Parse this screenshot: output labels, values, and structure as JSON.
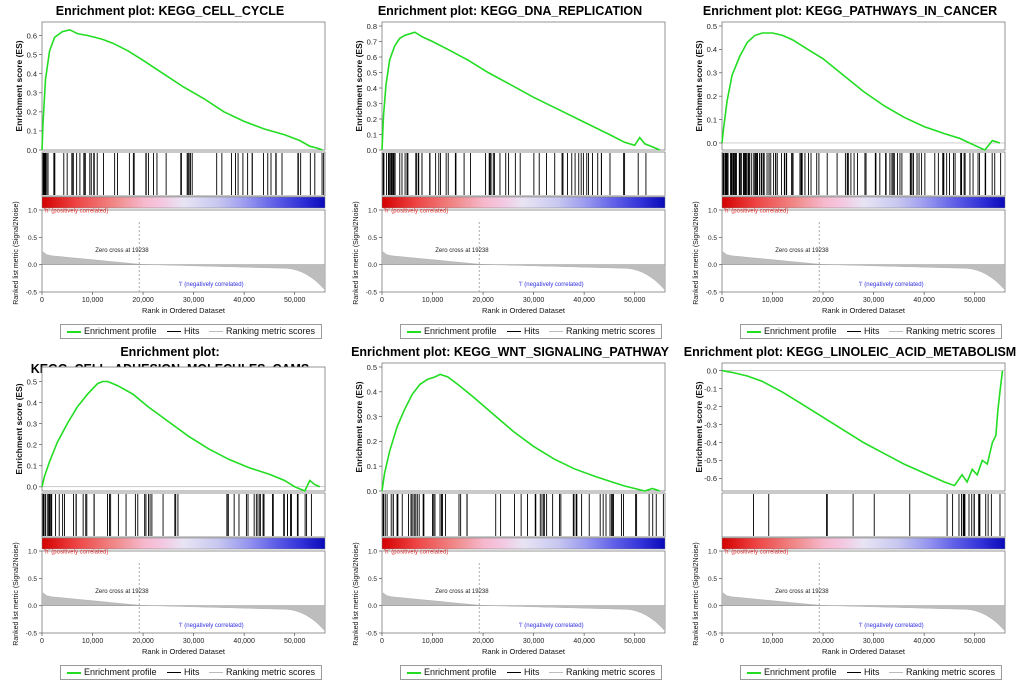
{
  "colors": {
    "es_line": "#22dd22",
    "hits": "#000000",
    "metric_fill": "#bdbdbd",
    "positive_label": "#e03030",
    "negative_label": "#3030e0",
    "zero_line": "#9a9a9a"
  },
  "legend": {
    "enrichment_profile": "Enrichment profile",
    "hits": "Hits",
    "ranking_metric_scores": "Ranking metric scores"
  },
  "common": {
    "es_ylabel": "Enrichment score (ES)",
    "metric_ylabel": "Ranked list metric (Signal2Noise)",
    "xlabel": "Rank in Ordered Dataset",
    "positive_label": "'h' (positively correlated)",
    "negative_label": "'l' (negatively correlated)",
    "zero_cross": "Zero cross at 19238",
    "metric_ticks": [
      "1.0",
      "0.5",
      "0.0",
      "-0.5"
    ],
    "x_ticks": [
      "0",
      "10,000",
      "20,000",
      "30,000",
      "40,000",
      "50,000"
    ]
  },
  "chart_data": [
    {
      "type": "line",
      "title": "Enrichment plot: KEGG_CELL_CYCLE",
      "title_lines": [
        "Enrichment plot: KEGG_CELL_CYCLE"
      ],
      "ylim": [
        0,
        0.65
      ],
      "yticks": [
        "0.0",
        "0.1",
        "0.2",
        "0.3",
        "0.4",
        "0.5",
        "0.6"
      ],
      "xlim": [
        0,
        56000
      ],
      "x": [
        0,
        200,
        700,
        1500,
        2500,
        4000,
        5500,
        7000,
        9000,
        10500,
        12000,
        14000,
        17000,
        20000,
        24000,
        28000,
        32000,
        36000,
        40000,
        44000,
        48000,
        51000,
        53000,
        54500,
        55500
      ],
      "y": [
        0,
        0.14,
        0.37,
        0.52,
        0.59,
        0.62,
        0.63,
        0.61,
        0.6,
        0.59,
        0.58,
        0.56,
        0.52,
        0.47,
        0.4,
        0.33,
        0.27,
        0.2,
        0.15,
        0.11,
        0.08,
        0.05,
        0.02,
        0.01,
        0.0
      ]
    },
    {
      "type": "line",
      "title": "Enrichment plot: KEGG_DNA_REPLICATION",
      "title_lines": [
        "Enrichment plot: KEGG_DNA_REPLICATION"
      ],
      "ylim": [
        0,
        0.8
      ],
      "yticks": [
        "0.0",
        "0.1",
        "0.2",
        "0.3",
        "0.4",
        "0.5",
        "0.6",
        "0.7",
        "0.8"
      ],
      "xlim": [
        0,
        56000
      ],
      "x": [
        0,
        300,
        800,
        1500,
        2500,
        3500,
        4500,
        5500,
        6500,
        8000,
        10000,
        13000,
        17000,
        21000,
        25000,
        30000,
        35000,
        40000,
        45000,
        48000,
        50000,
        51000,
        52000,
        53500,
        55000
      ],
      "y": [
        0,
        0.22,
        0.42,
        0.58,
        0.67,
        0.72,
        0.74,
        0.75,
        0.76,
        0.73,
        0.7,
        0.65,
        0.58,
        0.5,
        0.43,
        0.34,
        0.26,
        0.18,
        0.1,
        0.05,
        0.03,
        0.08,
        0.04,
        0.02,
        0.0
      ]
    },
    {
      "type": "line",
      "title": "Enrichment plot: KEGG_PATHWAYS_IN_CANCER",
      "title_lines": [
        "Enrichment plot: KEGG_PATHWAYS_IN_CANCER"
      ],
      "ylim": [
        -0.03,
        0.5
      ],
      "yticks": [
        "0.0",
        "0.1",
        "0.2",
        "0.3",
        "0.4",
        "0.5"
      ],
      "xlim": [
        0,
        56000
      ],
      "x": [
        0,
        300,
        1000,
        2000,
        3500,
        5000,
        6500,
        8000,
        10000,
        12000,
        14000,
        17000,
        20000,
        24000,
        28000,
        32000,
        36000,
        40000,
        44000,
        47000,
        49000,
        51000,
        52000,
        53500,
        55000
      ],
      "y": [
        0,
        0.06,
        0.18,
        0.29,
        0.37,
        0.43,
        0.46,
        0.47,
        0.47,
        0.46,
        0.44,
        0.4,
        0.36,
        0.29,
        0.22,
        0.16,
        0.11,
        0.07,
        0.04,
        0.02,
        0.0,
        -0.02,
        -0.03,
        0.01,
        0.0
      ]
    },
    {
      "type": "line",
      "title": "Enrichment plot: KEGG_CELL_ADHESION_MOLECULES_CAMS",
      "title_lines": [
        "Enrichment plot:",
        "KEGG_CELL_ADHESION_MOLECULES_CAMS"
      ],
      "ylim": [
        -0.02,
        0.55
      ],
      "yticks": [
        "0.0",
        "0.1",
        "0.2",
        "0.3",
        "0.4",
        "0.5"
      ],
      "xlim": [
        0,
        56000
      ],
      "x": [
        0,
        500,
        1500,
        3000,
        5000,
        7000,
        9000,
        11000,
        12000,
        13000,
        15000,
        18000,
        21000,
        25000,
        29000,
        33000,
        37000,
        41000,
        45000,
        48000,
        50000,
        52000,
        53000,
        54000,
        55000
      ],
      "y": [
        0,
        0.05,
        0.12,
        0.21,
        0.3,
        0.38,
        0.44,
        0.49,
        0.5,
        0.5,
        0.48,
        0.44,
        0.38,
        0.31,
        0.24,
        0.18,
        0.13,
        0.09,
        0.06,
        0.03,
        0.0,
        -0.02,
        0.03,
        0.01,
        0.0
      ]
    },
    {
      "type": "line",
      "title": "Enrichment plot: KEGG_WNT_SIGNALING_PATHWAY",
      "title_lines": [
        "Enrichment plot: KEGG_WNT_SIGNALING_PATHWAY"
      ],
      "ylim": [
        0,
        0.5
      ],
      "yticks": [
        "0.0",
        "0.1",
        "0.2",
        "0.3",
        "0.4",
        "0.5"
      ],
      "xlim": [
        0,
        56000
      ],
      "x": [
        0,
        500,
        1500,
        3000,
        4500,
        6000,
        7500,
        9000,
        10500,
        11500,
        13000,
        15000,
        18000,
        22000,
        26000,
        30000,
        34000,
        38000,
        42000,
        45000,
        48000,
        50000,
        52000,
        53500,
        55000
      ],
      "y": [
        0,
        0.07,
        0.16,
        0.26,
        0.33,
        0.39,
        0.43,
        0.45,
        0.46,
        0.47,
        0.46,
        0.43,
        0.38,
        0.31,
        0.24,
        0.18,
        0.13,
        0.09,
        0.06,
        0.04,
        0.02,
        0.01,
        0.0,
        0.01,
        0.0
      ]
    },
    {
      "type": "line",
      "title": "Enrichment plot: KEGG_LINOLEIC_ACID_METABOLISM",
      "title_lines": [
        "Enrichment plot: KEGG_LINOLEIC_ACID_METABOLISM"
      ],
      "ylim": [
        -0.67,
        0.02
      ],
      "yticks": [
        "0.0",
        "-0.1",
        "-0.2",
        "-0.3",
        "-0.4",
        "-0.5",
        "-0.6"
      ],
      "xlim": [
        0,
        56000
      ],
      "x": [
        0,
        2000,
        5000,
        8000,
        12000,
        16000,
        20000,
        24000,
        28000,
        32000,
        36000,
        40000,
        44000,
        46000,
        47500,
        48500,
        49500,
        50500,
        51500,
        52500,
        53500,
        54200,
        54600,
        55000,
        55500
      ],
      "y": [
        0,
        -0.01,
        -0.03,
        -0.06,
        -0.12,
        -0.19,
        -0.26,
        -0.33,
        -0.4,
        -0.46,
        -0.52,
        -0.57,
        -0.62,
        -0.64,
        -0.58,
        -0.62,
        -0.55,
        -0.58,
        -0.5,
        -0.52,
        -0.4,
        -0.36,
        -0.22,
        -0.12,
        0.0
      ]
    }
  ]
}
